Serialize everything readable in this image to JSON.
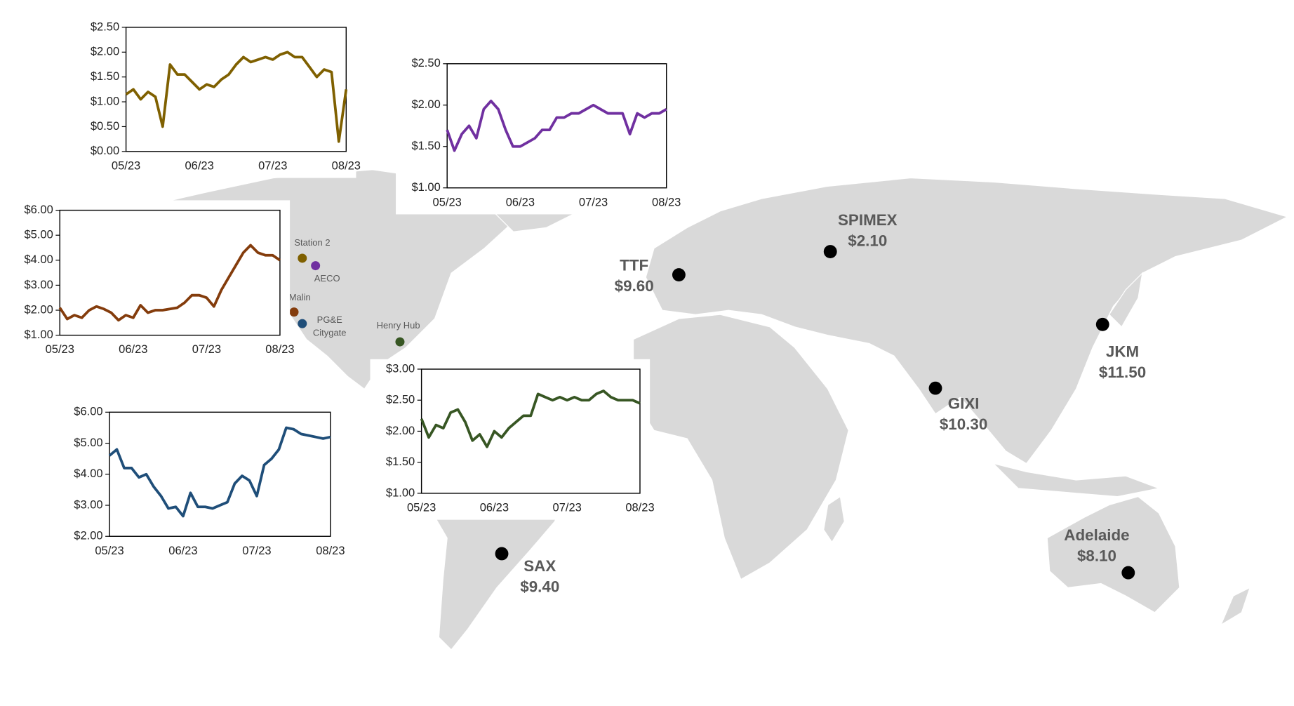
{
  "chart_data": [
    {
      "type": "line",
      "color": "#7f6000",
      "categories": [
        "05/23",
        null,
        null,
        null,
        null,
        null,
        null,
        null,
        null,
        null,
        "06/23",
        null,
        null,
        null,
        null,
        null,
        null,
        null,
        null,
        null,
        "07/23",
        null,
        null,
        null,
        null,
        null,
        null,
        null,
        null,
        null,
        "08/23"
      ],
      "values": [
        1.15,
        1.25,
        1.05,
        1.2,
        1.1,
        0.5,
        1.75,
        1.55,
        1.55,
        1.4,
        1.25,
        1.35,
        1.3,
        1.45,
        1.55,
        1.75,
        1.9,
        1.8,
        1.85,
        1.9,
        1.85,
        1.95,
        2.0,
        1.9,
        1.9,
        1.7,
        1.5,
        1.65,
        1.6,
        0.2,
        1.25
      ],
      "ylim": [
        0,
        2.5
      ],
      "yticks": [
        {
          "value": 0,
          "label": "$0.00"
        },
        {
          "value": 0.5,
          "label": "$0.50"
        },
        {
          "value": 1,
          "label": "$1.00"
        },
        {
          "value": 1.5,
          "label": "$1.50"
        },
        {
          "value": 2,
          "label": "$2.00"
        },
        {
          "value": 2.5,
          "label": "$2.50"
        }
      ]
    },
    {
      "type": "line",
      "color": "#7030a0",
      "categories": [
        "05/23",
        null,
        null,
        null,
        null,
        null,
        null,
        null,
        null,
        null,
        "06/23",
        null,
        null,
        null,
        null,
        null,
        null,
        null,
        null,
        null,
        "07/23",
        null,
        null,
        null,
        null,
        null,
        null,
        null,
        null,
        null,
        "08/23"
      ],
      "values": [
        1.7,
        1.45,
        1.65,
        1.75,
        1.6,
        1.95,
        2.05,
        1.95,
        1.7,
        1.5,
        1.5,
        1.55,
        1.6,
        1.7,
        1.7,
        1.85,
        1.85,
        1.9,
        1.9,
        1.95,
        2.0,
        1.95,
        1.9,
        1.9,
        1.9,
        1.65,
        1.9,
        1.85,
        1.9,
        1.9,
        1.95
      ],
      "ylim": [
        1,
        2.5
      ],
      "yticks": [
        {
          "value": 1,
          "label": "$1.00"
        },
        {
          "value": 1.5,
          "label": "$1.50"
        },
        {
          "value": 2,
          "label": "$2.00"
        },
        {
          "value": 2.5,
          "label": "$2.50"
        }
      ]
    },
    {
      "type": "line",
      "color": "#843c0c",
      "categories": [
        "05/23",
        null,
        null,
        null,
        null,
        null,
        null,
        null,
        null,
        null,
        "06/23",
        null,
        null,
        null,
        null,
        null,
        null,
        null,
        null,
        null,
        "07/23",
        null,
        null,
        null,
        null,
        null,
        null,
        null,
        null,
        null,
        "08/23"
      ],
      "values": [
        2.1,
        1.65,
        1.8,
        1.7,
        2.0,
        2.15,
        2.05,
        1.9,
        1.6,
        1.8,
        1.7,
        2.2,
        1.9,
        2.0,
        2.0,
        2.05,
        2.1,
        2.3,
        2.6,
        2.6,
        2.5,
        2.15,
        2.8,
        3.3,
        3.8,
        4.3,
        4.6,
        4.3,
        4.2,
        4.2,
        4.0
      ],
      "ylim": [
        1,
        6
      ],
      "yticks": [
        {
          "value": 1,
          "label": "$1.00"
        },
        {
          "value": 2,
          "label": "$2.00"
        },
        {
          "value": 3,
          "label": "$3.00"
        },
        {
          "value": 4,
          "label": "$4.00"
        },
        {
          "value": 5,
          "label": "$5.00"
        },
        {
          "value": 6,
          "label": "$6.00"
        }
      ]
    },
    {
      "type": "line",
      "color": "#1f4e79",
      "categories": [
        "05/23",
        null,
        null,
        null,
        null,
        null,
        null,
        null,
        null,
        null,
        "06/23",
        null,
        null,
        null,
        null,
        null,
        null,
        null,
        null,
        null,
        "07/23",
        null,
        null,
        null,
        null,
        null,
        null,
        null,
        null,
        null,
        "08/23"
      ],
      "values": [
        4.6,
        4.8,
        4.2,
        4.2,
        3.9,
        4.0,
        3.6,
        3.3,
        2.9,
        2.95,
        2.65,
        3.4,
        2.95,
        2.95,
        2.9,
        3.0,
        3.1,
        3.7,
        3.95,
        3.8,
        3.3,
        4.3,
        4.5,
        4.8,
        5.5,
        5.45,
        5.3,
        5.25,
        5.2,
        5.15,
        5.2
      ],
      "ylim": [
        2,
        6
      ],
      "yticks": [
        {
          "value": 2,
          "label": "$2.00"
        },
        {
          "value": 3,
          "label": "$3.00"
        },
        {
          "value": 4,
          "label": "$4.00"
        },
        {
          "value": 5,
          "label": "$5.00"
        },
        {
          "value": 6,
          "label": "$6.00"
        }
      ]
    },
    {
      "type": "line",
      "color": "#375623",
      "categories": [
        "05/23",
        null,
        null,
        null,
        null,
        null,
        null,
        null,
        null,
        null,
        "06/23",
        null,
        null,
        null,
        null,
        null,
        null,
        null,
        null,
        null,
        "07/23",
        null,
        null,
        null,
        null,
        null,
        null,
        null,
        null,
        null,
        "08/23"
      ],
      "values": [
        2.2,
        1.9,
        2.1,
        2.05,
        2.3,
        2.35,
        2.15,
        1.85,
        1.95,
        1.75,
        2.0,
        1.9,
        2.05,
        2.15,
        2.25,
        2.25,
        2.6,
        2.55,
        2.5,
        2.55,
        2.5,
        2.55,
        2.5,
        2.5,
        2.6,
        2.65,
        2.55,
        2.5,
        2.5,
        2.5,
        2.45
      ],
      "ylim": [
        1,
        3
      ],
      "yticks": [
        {
          "value": 1,
          "label": "$1.00"
        },
        {
          "value": 1.5,
          "label": "$1.50"
        },
        {
          "value": 2,
          "label": "$2.00"
        },
        {
          "value": 2.5,
          "label": "$2.50"
        },
        {
          "value": 3,
          "label": "$3.00"
        }
      ]
    }
  ],
  "map": {
    "markers": [
      {
        "name": "TTF",
        "price": "$9.60"
      },
      {
        "name": "SPIMEX",
        "price": "$2.10"
      },
      {
        "name": "JKM",
        "price": "$11.50"
      },
      {
        "name": "GIXI",
        "price": "$10.30"
      },
      {
        "name": "SAX",
        "price": "$9.40"
      },
      {
        "name": "Adelaide",
        "price": "$8.10"
      }
    ],
    "hubs": [
      {
        "label_lines": [
          "Station 2"
        ],
        "color": "#7f6000"
      },
      {
        "label_lines": [
          "AECO"
        ],
        "color": "#7030a0"
      },
      {
        "label_lines": [
          "Malin"
        ],
        "color": "#843c0c"
      },
      {
        "label_lines": [
          "PG&E",
          "Citygate"
        ],
        "color": "#1f4e79"
      },
      {
        "label_lines": [
          "Henry Hub"
        ],
        "color": "#375623"
      }
    ]
  }
}
